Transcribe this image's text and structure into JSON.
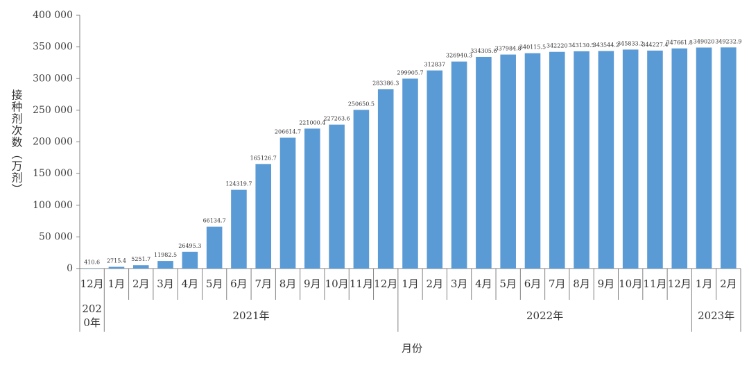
{
  "chart_data": {
    "type": "bar",
    "y_label": "接种剂次数（万剂）",
    "x_label": "月份",
    "color": "#5b9bd5",
    "ylim": [
      0,
      400000
    ],
    "yticks": [
      0,
      {
        "value": 50000,
        "label": "50 000"
      },
      {
        "value": 100000,
        "label": "100 000"
      },
      {
        "value": 150000,
        "label": "150 000"
      },
      {
        "value": 200000,
        "label": "200 000"
      },
      {
        "value": 250000,
        "label": "250 000"
      },
      {
        "value": 300000,
        "label": "300 000"
      },
      {
        "value": 350000,
        "label": "350 000"
      },
      {
        "value": 400000,
        "label": "400 000"
      }
    ],
    "groups": [
      {
        "name": "2020年",
        "categories": [
          "12月"
        ],
        "values": [
          410.6
        ]
      },
      {
        "name": "2021年",
        "categories": [
          "1月",
          "2月",
          "3月",
          "4月",
          "5月",
          "6月",
          "7月",
          "8月",
          "9月",
          "10月",
          "11月",
          "12月"
        ],
        "values": [
          2715.4,
          5251.7,
          11982.5,
          26495.3,
          66134.7,
          124319.7,
          165126.7,
          206614.7,
          221000.4,
          227263.6,
          250650.5,
          283386.3
        ]
      },
      {
        "name": "2022年",
        "categories": [
          "1月",
          "2月",
          "3月",
          "4月",
          "5月",
          "6月",
          "7月",
          "8月",
          "9月",
          "10月",
          "11月",
          "12月"
        ],
        "values": [
          299905.7,
          312837,
          326940.3,
          334305.6,
          337984.8,
          340115.5,
          342220,
          343130.5,
          343544.2,
          345833.2,
          344227.4,
          347661.8
        ]
      },
      {
        "name": "2023年",
        "categories": [
          "1月",
          "2月"
        ],
        "values": [
          349020,
          349232.9
        ]
      }
    ]
  }
}
